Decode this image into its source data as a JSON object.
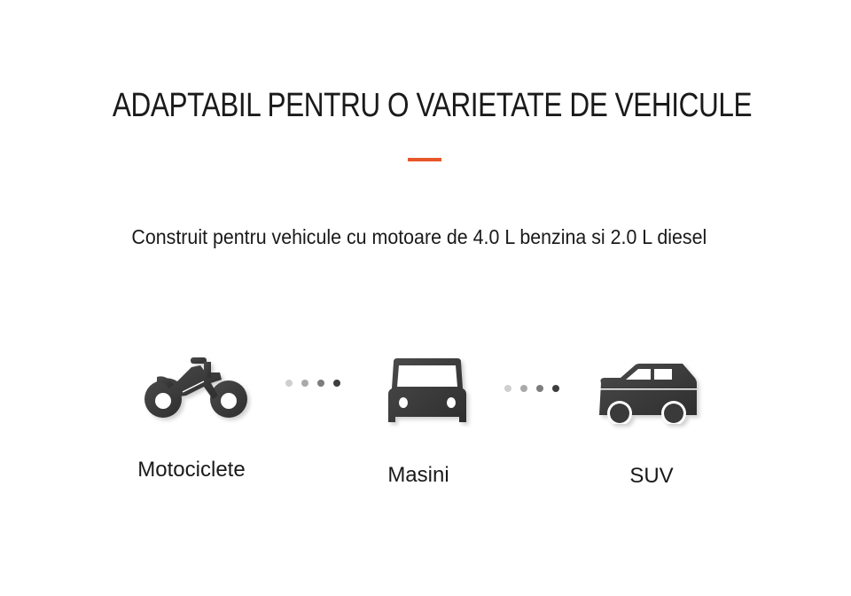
{
  "title": "ADAPTABIL PENTRU O VARIETATE DE VEHICULE",
  "subtitle": "Construit pentru vehicule cu motoare de 4.0 L benzina si 2.0 L diesel",
  "accent_color": "#e8562a",
  "icon_color": "#3a3a3a",
  "vehicles": [
    {
      "label": "Motociclete",
      "icon": "motorcycle-icon"
    },
    {
      "label": "Masini",
      "icon": "car-front-icon"
    },
    {
      "label": "SUV",
      "icon": "suv-icon"
    }
  ],
  "connector_dot_colors": [
    "#cfcfcf",
    "#a9a9a9",
    "#7c7c7c",
    "#3e3e3e"
  ]
}
